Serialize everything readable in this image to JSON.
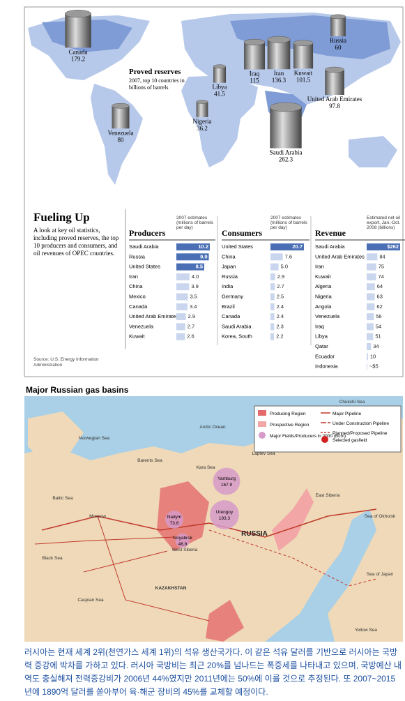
{
  "map": {
    "title": "Proved reserves",
    "subtitle": "2007, top 10 countries in billions of barrels",
    "reserves": [
      {
        "name": "Canada",
        "value": 179.2
      },
      {
        "name": "Russia",
        "value": 60
      },
      {
        "name": "Iraq",
        "value": 115
      },
      {
        "name": "Iran",
        "value": 136.3
      },
      {
        "name": "Kuwait",
        "value": 101.5
      },
      {
        "name": "United Arab Emirates",
        "value": 97.8
      },
      {
        "name": "Libya",
        "value": 41.5
      },
      {
        "name": "Nigeria",
        "value": 36.2
      },
      {
        "name": "Venezuela",
        "value": 80
      },
      {
        "name": "Saudi Arabia",
        "value": 262.3
      }
    ]
  },
  "header": {
    "title": "Fueling Up",
    "description": "A look at key oil statistics, including proved reserves, the top 10 producers and consumers, and oil revenues of OPEC countries."
  },
  "chart_data": [
    {
      "type": "bar",
      "title": "Producers",
      "subtitle": "2007 estimates (millions of barrels per day)",
      "categories": [
        "Saudi Arabia",
        "Russia",
        "United States",
        "Iran",
        "China",
        "Mexico",
        "Canada",
        "United Arab Emirates",
        "Venezuela",
        "Kuwait"
      ],
      "values": [
        10.2,
        9.9,
        8.5,
        4,
        3.9,
        3.5,
        3.4,
        2.9,
        2.7,
        2.6
      ],
      "value_labels": [
        "10.2",
        "9.9",
        "8.5",
        "4.0",
        "3.9",
        "3.5",
        "3.4",
        "2.9",
        "2.7",
        "2.6"
      ],
      "colors": [
        "#4a6fb5",
        "#4a6fb5",
        "#4a6fb5",
        "#c9d6ee",
        "#c9d6ee",
        "#c9d6ee",
        "#c9d6ee",
        "#c9d6ee",
        "#c9d6ee",
        "#c9d6ee"
      ]
    },
    {
      "type": "bar",
      "title": "Consumers",
      "subtitle": "2007 estimates (millions of barrels per day)",
      "categories": [
        "United States",
        "China",
        "Japan",
        "Russia",
        "India",
        "Germany",
        "Brazil",
        "Canada",
        "Saudi Arabia",
        "Korea, South"
      ],
      "values": [
        20.7,
        7.6,
        5,
        2.9,
        2.7,
        2.5,
        2.4,
        2.4,
        2.3,
        2.2
      ],
      "value_labels": [
        "20.7",
        "7.6",
        "5.0",
        "2.9",
        "2.7",
        "2.5",
        "2.4",
        "2.4",
        "2.3",
        "2.2"
      ],
      "colors": [
        "#4a6fb5",
        "#c9d6ee",
        "#c9d6ee",
        "#c9d6ee",
        "#c9d6ee",
        "#c9d6ee",
        "#c9d6ee",
        "#c9d6ee",
        "#c9d6ee",
        "#c9d6ee"
      ]
    },
    {
      "type": "bar",
      "title": "Revenue",
      "subtitle": "Estimated net oil export, Jan.-Oct. 2008 (billions)",
      "categories": [
        "Saudi Arabia",
        "United Arab Emirates",
        "Iran",
        "Kuwait",
        "Algeria",
        "Nigeria",
        "Angola",
        "Venezuela",
        "Iraq",
        "Libya",
        "Qatar",
        "Ecuador",
        "Indonesia"
      ],
      "values": [
        262,
        84,
        75,
        74,
        64,
        63,
        62,
        56,
        54,
        51,
        34,
        10,
        5
      ],
      "value_labels": [
        "$262",
        "84",
        "75",
        "74",
        "64",
        "63",
        "62",
        "56",
        "54",
        "51",
        "34",
        "10",
        "~$5"
      ],
      "colors": [
        "#4a6fb5",
        "#c9d6ee",
        "#c9d6ee",
        "#c9d6ee",
        "#c9d6ee",
        "#c9d6ee",
        "#c9d6ee",
        "#c9d6ee",
        "#c9d6ee",
        "#c9d6ee",
        "#c9d6ee",
        "#c9d6ee",
        "#c9d6ee"
      ]
    }
  ],
  "source": "Source: U.S. Energy Information Administration",
  "gas_map": {
    "title": "Major Russian gas basins",
    "legend": [
      "Producing Region",
      "Prospective Region",
      "Major Fields/Producers in 2000 (Bcm)",
      "Major Pipeline",
      "Under Construction Pipeline",
      "Planned/Proposed Pipeline",
      "Selected gasfield"
    ],
    "fields": [
      {
        "name": "Yamburg",
        "value": 167.9
      },
      {
        "name": "Urengoy",
        "value": 193.3
      },
      {
        "name": "Nadym",
        "value": 73.6
      },
      {
        "name": "Noyabrsk",
        "value": 46.8
      }
    ],
    "places": [
      "Chukchi Sea",
      "Arctic Ocean",
      "Norwegian Sea",
      "Barents Sea",
      "Kara Sea",
      "Laptev Sea",
      "East Siberia",
      "Sea of Okhotsk",
      "RUSSIA",
      "West Siberia",
      "Moscow",
      "Baltic Sea",
      "Black Sea",
      "Caspian Sea",
      "KAZAKHSTAN",
      "Sea of Japan",
      "Yellow Sea"
    ]
  },
  "caption": "러시아는 현재 세계 2위(천연가스 세계 1위)의 석유 생산국가다. 이 같은 석유 달러를 기반으로 러시아는 국방력 증강에 박차를 가하고 있다. 러시아 국방비는 최근 20%를 넘나드는 폭증세를 나타내고 있으며, 국방예산 내역도 충실해져 전력증강비가 2006년 44%였지만 2011년에는 50%에 이를 것으로 추정된다. 또 2007~2015년에 1890억 달러를 쏟아부어 육·해군 장비의 45%를 교체할 예정이다."
}
